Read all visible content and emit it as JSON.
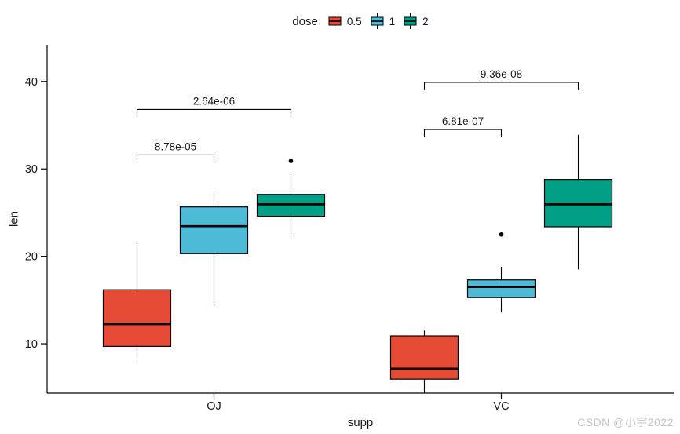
{
  "watermark": {
    "text": "CSDN @小宇2022",
    "color": "#c4c4c4"
  },
  "chart_data": {
    "type": "boxplot",
    "title": "",
    "xlabel": "supp",
    "ylabel": "len",
    "categories": [
      "OJ",
      "VC"
    ],
    "yticks": [
      10,
      20,
      30,
      40
    ],
    "ylim": [
      4.35,
      44.2
    ],
    "grid": false,
    "panel_background": "#ffffff",
    "axis_color": "#000000",
    "text_color": "#1a1a1a",
    "legend": {
      "title": "dose",
      "position": "top",
      "entries": [
        {
          "label": "0.5",
          "color": "#E64B35"
        },
        {
          "label": "1",
          "color": "#4DBBD5"
        },
        {
          "label": "2",
          "color": "#00A087"
        }
      ]
    },
    "boxes": [
      {
        "category": "OJ",
        "dose": "0.5",
        "color": "#E64B35",
        "min": 8.2,
        "q1": 9.7,
        "median": 12.25,
        "q3": 16.18,
        "max": 21.5,
        "outliers": []
      },
      {
        "category": "OJ",
        "dose": "1",
        "color": "#4DBBD5",
        "min": 14.5,
        "q1": 20.3,
        "median": 23.45,
        "q3": 25.65,
        "max": 27.3,
        "outliers": []
      },
      {
        "category": "OJ",
        "dose": "2",
        "color": "#00A087",
        "min": 22.4,
        "q1": 24.58,
        "median": 25.95,
        "q3": 27.08,
        "max": 29.4,
        "outliers": [
          30.9
        ]
      },
      {
        "category": "VC",
        "dose": "0.5",
        "color": "#E64B35",
        "min": 4.2,
        "q1": 5.95,
        "median": 7.15,
        "q3": 10.9,
        "max": 11.5,
        "outliers": []
      },
      {
        "category": "VC",
        "dose": "1",
        "color": "#4DBBD5",
        "min": 13.6,
        "q1": 15.28,
        "median": 16.5,
        "q3": 17.3,
        "max": 18.8,
        "outliers": [
          22.5
        ]
      },
      {
        "category": "VC",
        "dose": "2",
        "color": "#00A087",
        "min": 18.5,
        "q1": 23.38,
        "median": 25.95,
        "q3": 28.8,
        "max": 33.9,
        "outliers": []
      }
    ],
    "comparisons": [
      {
        "category": "OJ",
        "dose_from": "0.5",
        "dose_to": "1",
        "p_label": "8.78e-05",
        "y": 31.6
      },
      {
        "category": "OJ",
        "dose_from": "0.5",
        "dose_to": "2",
        "p_label": "2.64e-06",
        "y": 36.8
      },
      {
        "category": "VC",
        "dose_from": "0.5",
        "dose_to": "1",
        "p_label": "6.81e-07",
        "y": 34.5
      },
      {
        "category": "VC",
        "dose_from": "0.5",
        "dose_to": "2",
        "p_label": "9.36e-08",
        "y": 39.9
      }
    ]
  }
}
